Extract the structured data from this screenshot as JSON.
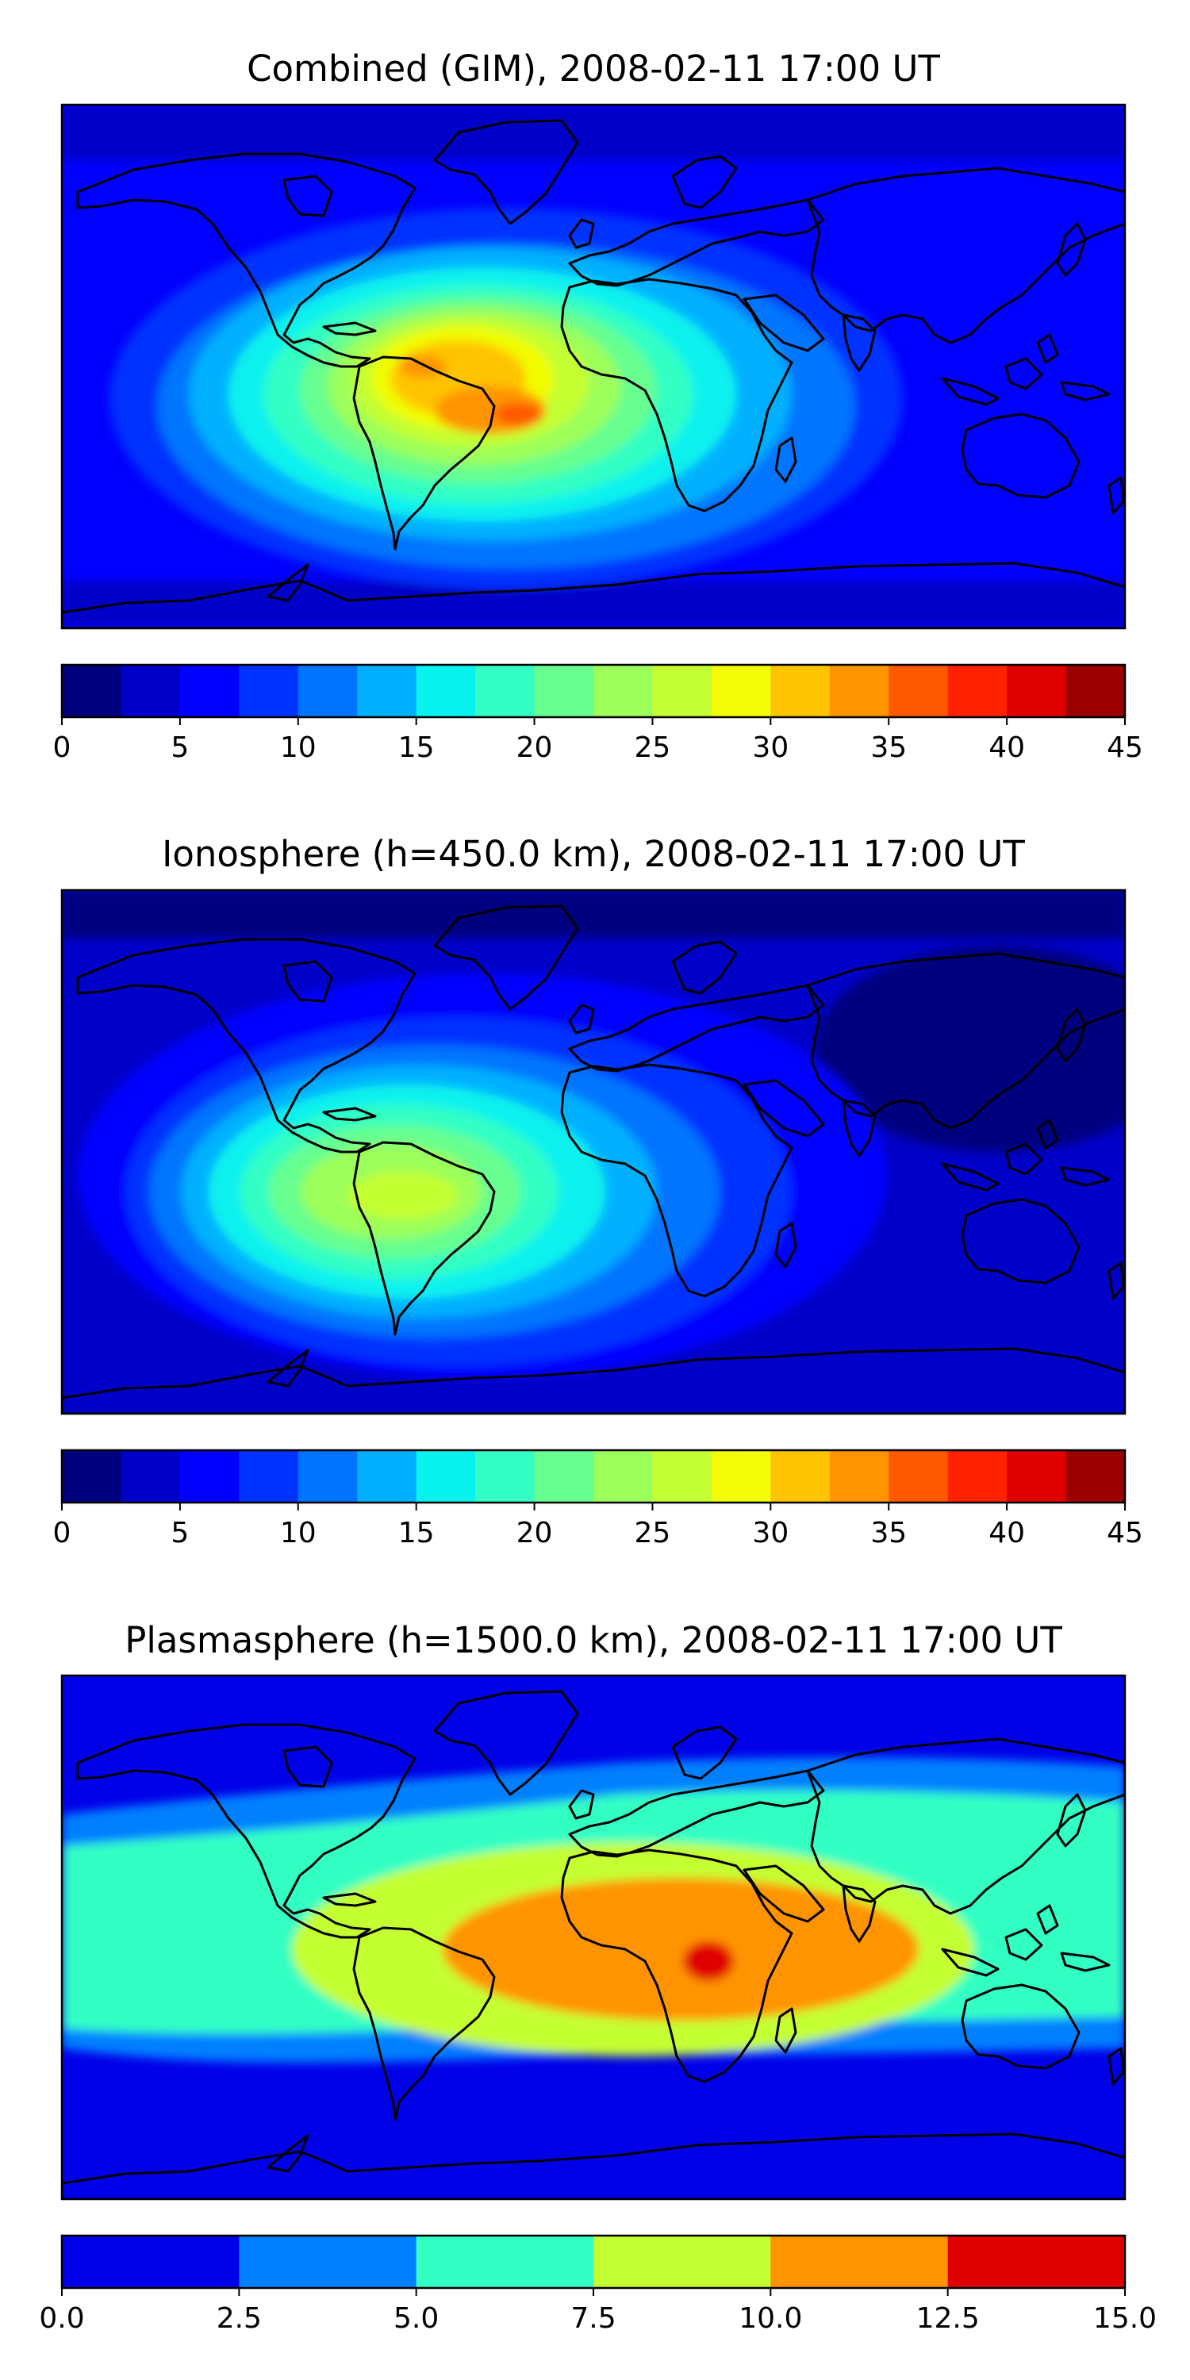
{
  "chart_data": [
    {
      "type": "heatmap",
      "subtype": "filled-contour world map",
      "title": "Combined (GIM), 2008-02-11 17:00 UT",
      "colorbar": {
        "ticks": [
          "0",
          "5",
          "10",
          "15",
          "20",
          "25",
          "30",
          "35",
          "40",
          "45"
        ],
        "range": [
          0,
          45
        ],
        "levels": [
          0,
          2.5,
          5,
          7.5,
          10,
          12.5,
          15,
          17.5,
          20,
          22.5,
          25,
          27.5,
          30,
          32.5,
          35,
          37.5,
          40,
          42.5,
          45
        ],
        "colors": [
          "#00007f",
          "#0000c8",
          "#0000ff",
          "#0033ff",
          "#0074ff",
          "#00b0ff",
          "#08f2ee",
          "#33ffc4",
          "#66ff90",
          "#9cff5a",
          "#c4ff33",
          "#f1fc06",
          "#ffc400",
          "#ff9400",
          "#ff5900",
          "#ff2200",
          "#e00000",
          "#9c0000"
        ]
      },
      "background_level": "#0000ff",
      "peak": {
        "region": "South America / South Atlantic",
        "value_approx": 37
      }
    },
    {
      "type": "heatmap",
      "subtype": "filled-contour world map",
      "title": "Ionosphere  (h=450.0 km), 2008-02-11 17:00 UT",
      "colorbar": {
        "ticks": [
          "0",
          "5",
          "10",
          "15",
          "20",
          "25",
          "30",
          "35",
          "40",
          "45"
        ],
        "range": [
          0,
          45
        ],
        "levels": [
          0,
          2.5,
          5,
          7.5,
          10,
          12.5,
          15,
          17.5,
          20,
          22.5,
          25,
          27.5,
          30,
          32.5,
          35,
          37.5,
          40,
          42.5,
          45
        ],
        "colors": [
          "#00007f",
          "#0000c8",
          "#0000ff",
          "#0033ff",
          "#0074ff",
          "#00b0ff",
          "#08f2ee",
          "#33ffc4",
          "#66ff90",
          "#9cff5a",
          "#c4ff33",
          "#f1fc06",
          "#ffc400",
          "#ff9400",
          "#ff5900",
          "#ff2200",
          "#e00000",
          "#9c0000"
        ]
      },
      "background_level": "#0000c8",
      "peak": {
        "region": "South America",
        "value_approx": 27
      }
    },
    {
      "type": "heatmap",
      "subtype": "filled-contour world map",
      "title": "Plasmasphere (h=1500.0 km), 2008-02-11 17:00 UT",
      "colorbar": {
        "ticks": [
          "0.0",
          "2.5",
          "5.0",
          "7.5",
          "10.0",
          "12.5",
          "15.0"
        ],
        "range": [
          0,
          15
        ],
        "levels": [
          0,
          2.5,
          5,
          7.5,
          10,
          12.5,
          15
        ],
        "colors": [
          "#0000e8",
          "#0080ff",
          "#33ffc4",
          "#c4ff33",
          "#ff9400",
          "#e00000"
        ]
      },
      "background_level": "#0000e8",
      "peak": {
        "region": "Central / East Africa",
        "value_approx": 13
      }
    }
  ]
}
